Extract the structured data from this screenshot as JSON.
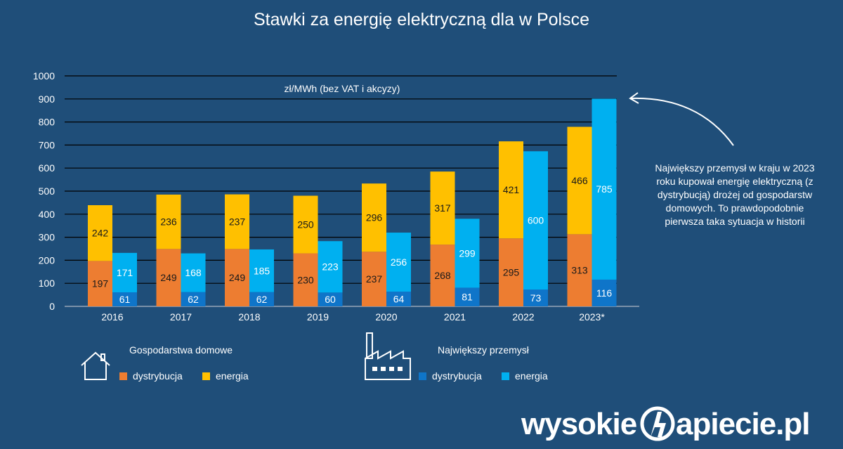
{
  "chart_data": {
    "type": "bar",
    "title": "Stawki za energię elektryczną dla w Polsce",
    "unit_label": "zł/MWh (bez VAT i akcyzy)",
    "categories": [
      "2016",
      "2017",
      "2018",
      "2019",
      "2020",
      "2021",
      "2022",
      "2023*"
    ],
    "ylim": [
      0,
      1000
    ],
    "yticks": [
      "0",
      "100",
      "200",
      "300",
      "400",
      "500",
      "600",
      "700",
      "800",
      "900",
      "1000"
    ],
    "grid": true,
    "groups": [
      {
        "name": "Gospodarstwa domowe",
        "series": [
          {
            "name": "dystrybucja",
            "color": "#ed7d31",
            "values": [
              197,
              249,
              249,
              230,
              237,
              268,
              295,
              313
            ]
          },
          {
            "name": "energia",
            "color": "#ffc000",
            "values": [
              242,
              236,
              237,
              250,
              296,
              317,
              421,
              466
            ]
          }
        ]
      },
      {
        "name": "Największy przemysł",
        "series": [
          {
            "name": "dystrybucja",
            "color": "#0f75c9",
            "values": [
              61,
              62,
              62,
              60,
              64,
              81,
              73,
              116
            ]
          },
          {
            "name": "energia",
            "color": "#00b0f0",
            "values": [
              171,
              168,
              185,
              223,
              256,
              299,
              600,
              785
            ]
          }
        ]
      }
    ],
    "annotation": "Największy przemysł w kraju w 2023 roku kupował energię elektryczną (z dystrybucją) drożej od gospodarstw domowych. To prawdopodobnie pierwsza taka sytuacja w historii"
  },
  "legend": {
    "households_title": "Gospodarstwa domowe",
    "industry_title": "Największy przemysł",
    "households_dist": "dystrybucja",
    "households_energy": "energia",
    "industry_dist": "dystrybucja",
    "industry_energy": "energia"
  },
  "icons": [
    "house-icon",
    "factory-icon",
    "lightning-logo-icon"
  ],
  "brand": "wysokieNapiecie.pl"
}
